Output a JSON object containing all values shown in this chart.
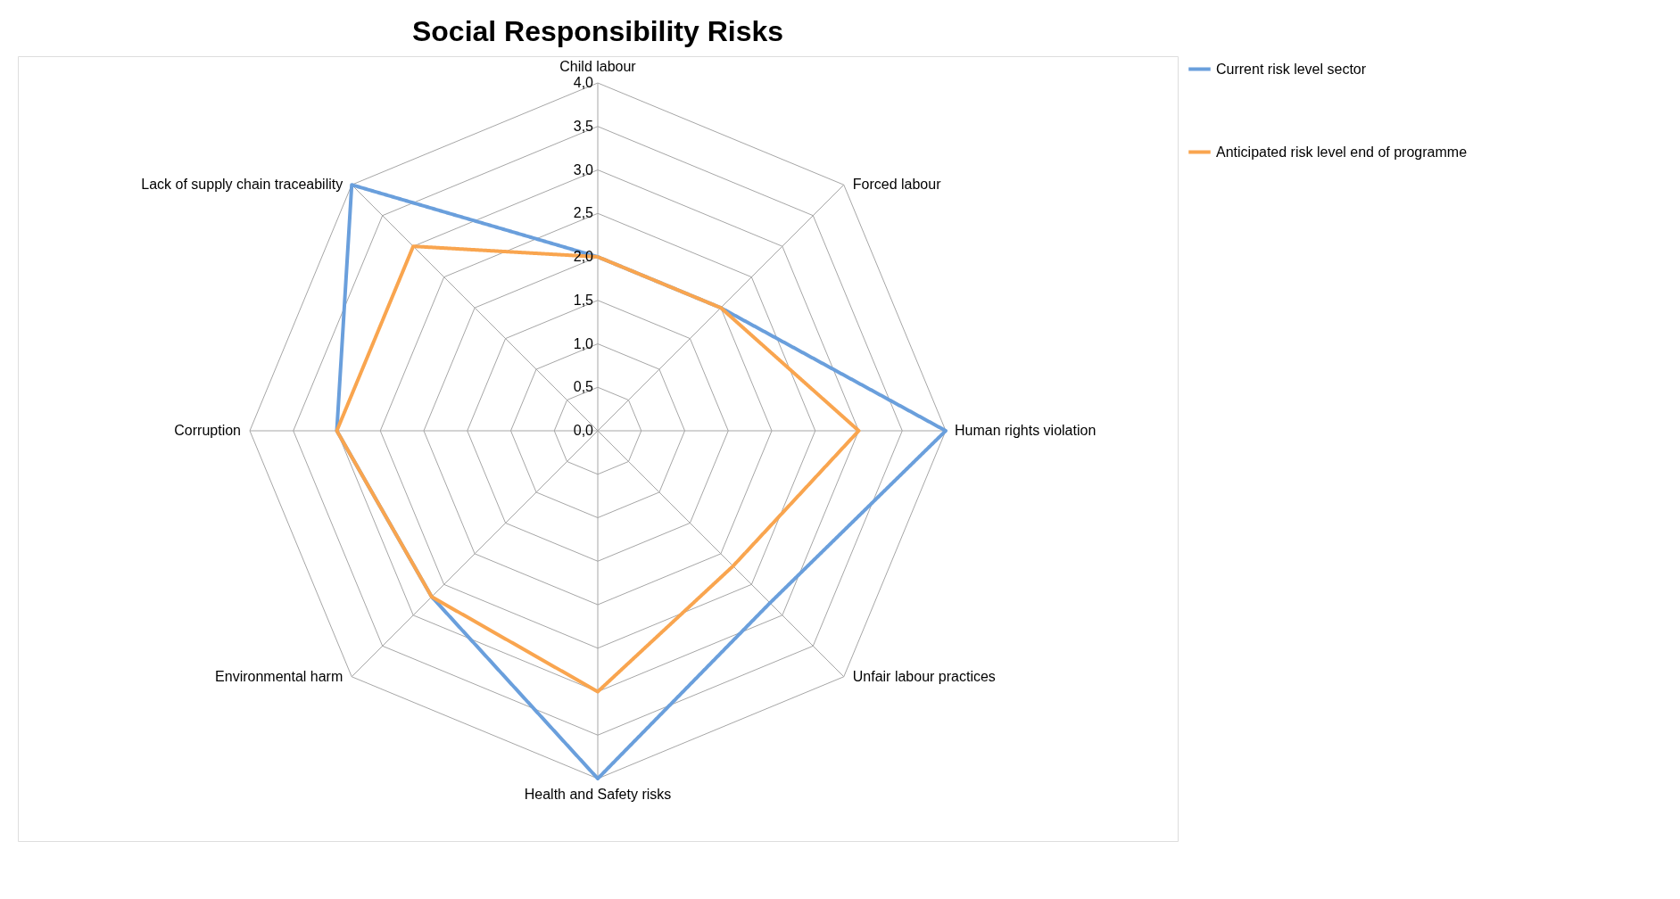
{
  "chart_data": {
    "type": "radar",
    "title": "Social Responsibility Risks",
    "categories": [
      "Child labour",
      "Forced labour",
      "Human rights violation",
      "Unfair labour practices",
      "Health and Safety risks",
      "Environmental harm",
      "Corruption",
      "Lack of supply chain traceability"
    ],
    "series": [
      {
        "name": "Current risk level sector",
        "color": "#6a9fdc",
        "values": [
          2.0,
          2.0,
          4.0,
          2.8,
          4.0,
          2.7,
          3.0,
          4.0
        ]
      },
      {
        "name": "Anticipated risk level end of programme",
        "color": "#f9a54f",
        "values": [
          2.0,
          2.0,
          3.0,
          2.2,
          3.0,
          2.7,
          3.0,
          3.0
        ]
      }
    ],
    "ylim": [
      0,
      4
    ],
    "yticks": [
      {
        "value": 0,
        "label": "0,0"
      },
      {
        "value": 0.5,
        "label": "0,5"
      },
      {
        "value": 1,
        "label": "1,0"
      },
      {
        "value": 1.5,
        "label": "1,5"
      },
      {
        "value": 2,
        "label": "2,0"
      },
      {
        "value": 2.5,
        "label": "2,5"
      },
      {
        "value": 3,
        "label": "3,0"
      },
      {
        "value": 3.5,
        "label": "3,5"
      },
      {
        "value": 4,
        "label": "4,0"
      }
    ],
    "grid": true,
    "legend": "right",
    "line_style": "solid",
    "marker": "none"
  }
}
